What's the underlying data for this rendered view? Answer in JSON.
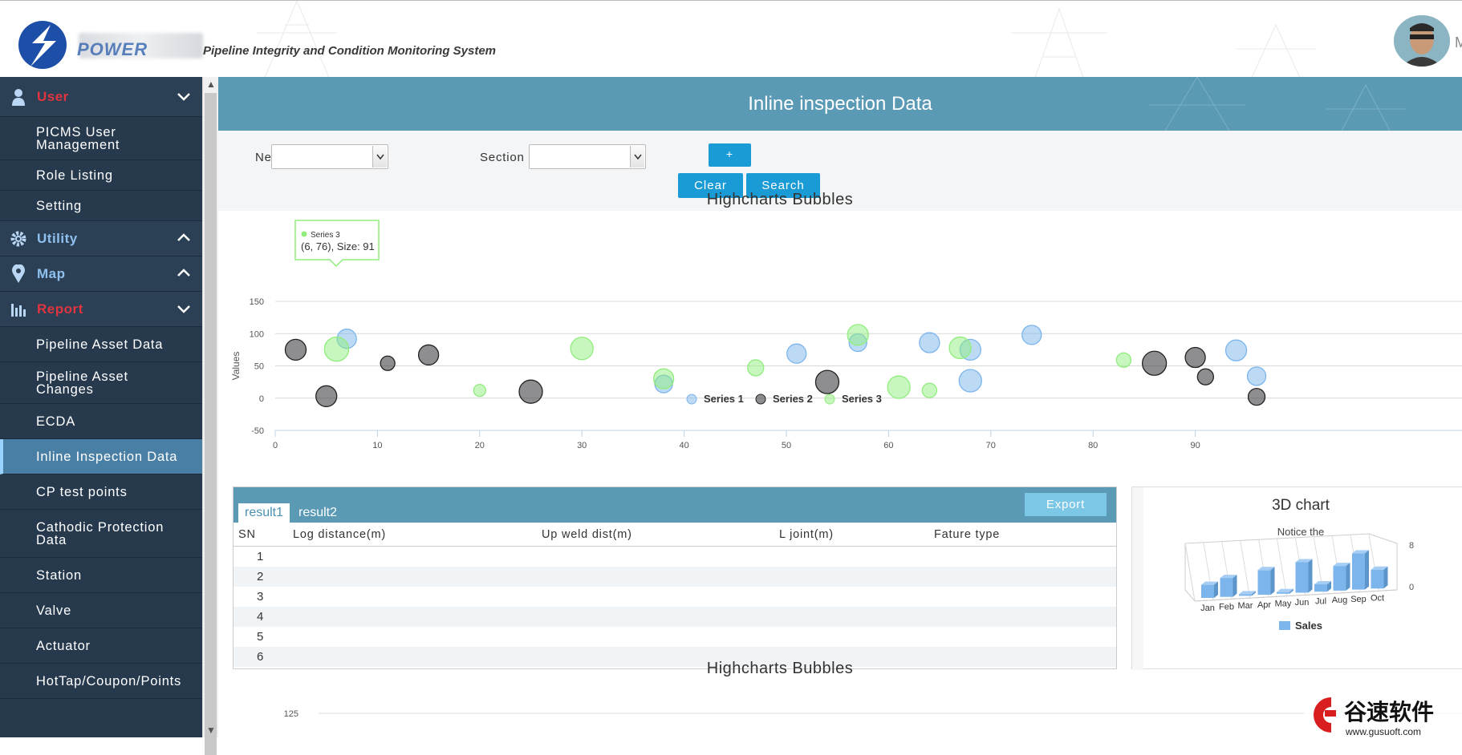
{
  "header": {
    "logo_word": "POWER",
    "app_title": "Pipeline Integrity and Condition Monitoring System",
    "user_initial": "M"
  },
  "sidebar": {
    "sections": [
      {
        "label": "User",
        "icon": "user-icon",
        "color": "#e0353f",
        "expanded": true,
        "items": [
          "PICMS User Management",
          "Role Listing",
          "Setting"
        ]
      },
      {
        "label": "Utility",
        "icon": "gear-icon",
        "color": "#8fc0ee",
        "expanded": false,
        "items": []
      },
      {
        "label": "Map",
        "icon": "map-pin-icon",
        "color": "#8fc0ee",
        "expanded": false,
        "items": []
      },
      {
        "label": "Report",
        "icon": "bar-chart-icon",
        "color": "#e0353f",
        "expanded": true,
        "items": [
          "Pipeline Asset Data",
          "Pipeline Asset Changes",
          "ECDA",
          "Inline Inspection Data",
          "CP test points",
          "Cathodic Protection Data",
          "Station",
          "Valve",
          "Actuator",
          "HotTap/Coupon/Points"
        ]
      }
    ],
    "active_item": "Inline Inspection Data"
  },
  "page": {
    "title": "Inline inspection Data"
  },
  "filters": {
    "network_label": "Network",
    "section_label": "Section",
    "network_value": "",
    "section_value": "",
    "plus_label": "+",
    "clear_label": "Clear",
    "search_label": "Search"
  },
  "chart_data": [
    {
      "type": "bubble",
      "title": "Highcharts Bubbles",
      "ylabel": "Values",
      "xlim": [
        0,
        95
      ],
      "ylim": [
        -50,
        150
      ],
      "x_ticks": [
        0,
        10,
        20,
        30,
        40,
        50,
        60,
        70,
        80,
        90
      ],
      "y_ticks": [
        -50,
        0,
        50,
        100,
        150
      ],
      "legend_position": "bottom",
      "series": [
        {
          "name": "Series 1",
          "color": "#7cb5ec",
          "points": [
            [
              7,
              92,
              60
            ],
            [
              38,
              22,
              50
            ],
            [
              51,
              69,
              60
            ],
            [
              57,
              86,
              50
            ],
            [
              64,
              86,
              65
            ],
            [
              68,
              75,
              70
            ],
            [
              68,
              27,
              80
            ],
            [
              74,
              98,
              60
            ],
            [
              94,
              74,
              70
            ],
            [
              96,
              34,
              55
            ]
          ]
        },
        {
          "name": "Series 2",
          "color": "#434348",
          "points": [
            [
              2,
              75,
              70
            ],
            [
              5,
              3,
              70
            ],
            [
              11,
              54,
              30
            ],
            [
              15,
              67,
              65
            ],
            [
              25,
              10,
              85
            ],
            [
              54,
              25,
              85
            ],
            [
              86,
              54,
              90
            ],
            [
              90,
              63,
              65
            ],
            [
              91,
              33,
              40
            ],
            [
              96,
              2,
              45
            ]
          ]
        },
        {
          "name": "Series 3",
          "color": "#90ed7d",
          "points": [
            [
              6,
              76,
              91
            ],
            [
              20,
              12,
              15
            ],
            [
              30,
              77,
              80
            ],
            [
              38,
              30,
              65
            ],
            [
              47,
              47,
              40
            ],
            [
              57,
              98,
              70
            ],
            [
              61,
              17,
              80
            ],
            [
              64,
              12,
              30
            ],
            [
              67,
              78,
              75
            ],
            [
              83,
              59,
              30
            ]
          ]
        }
      ],
      "tooltip": {
        "series": "Series 3",
        "text": "(6, 76), Size: 91"
      }
    },
    {
      "type": "bar",
      "title": "3D chart",
      "subtitle": "Notice the",
      "categories": [
        "Jan",
        "Feb",
        "Mar",
        "Apr",
        "May",
        "Jun",
        "Jul",
        "Aug",
        "Sep",
        "Oct"
      ],
      "series": [
        {
          "name": "Sales",
          "color": "#7cb5ec",
          "values": [
            2,
            3,
            0,
            4,
            0,
            5,
            1,
            4,
            6,
            3
          ]
        }
      ],
      "y_ticks": [
        0,
        8
      ]
    },
    {
      "type": "bubble",
      "title": "Highcharts Bubbles",
      "y_ticks_visible": [
        125
      ]
    }
  ],
  "table": {
    "tabs": [
      "result1",
      "result2"
    ],
    "active_tab": "result1",
    "export_label": "Export",
    "columns": [
      "SN",
      "Log distance(m)",
      "Up weld dist(m)",
      "L joint(m)",
      "Fature type"
    ],
    "rows": [
      [
        "1"
      ],
      [
        "2"
      ],
      [
        "3"
      ],
      [
        "4"
      ],
      [
        "5"
      ],
      [
        "6"
      ]
    ]
  },
  "watermark": {
    "cn": "谷速软件",
    "url": "www.gusuoft.com"
  }
}
